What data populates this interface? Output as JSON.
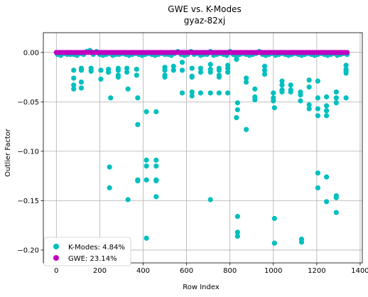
{
  "chart_data": {
    "type": "scatter",
    "title": "GWE vs. K-Modes",
    "subtitle": "gyaz-82xj",
    "xlabel": "Row Index",
    "ylabel": "Outlier Factor",
    "xlim": [
      -60,
      1410
    ],
    "ylim": [
      -0.213,
      0.02
    ],
    "xticks": [
      0,
      200,
      400,
      600,
      800,
      1000,
      1200,
      1400
    ],
    "yticks": [
      0.0,
      -0.05,
      -0.1,
      -0.15,
      -0.2
    ],
    "xtick_labels": [
      "0",
      "200",
      "400",
      "600",
      "800",
      "1000",
      "1200",
      "1400"
    ],
    "ytick_labels": [
      "0.00",
      "−0.05",
      "−0.10",
      "−0.15",
      "−0.20"
    ],
    "grid": true,
    "legend_position": "lower-left",
    "series": [
      {
        "name": "K-Modes: 4.84%",
        "color": "#00bfbf",
        "points": [
          [
            5,
            -0.002
          ],
          [
            20,
            -0.003
          ],
          [
            35,
            -0.001
          ],
          [
            50,
            -0.002
          ],
          [
            65,
            -0.002
          ],
          [
            80,
            -0.002
          ],
          [
            95,
            -0.003
          ],
          [
            110,
            -0.001
          ],
          [
            125,
            -0.002
          ],
          [
            140,
            0.001
          ],
          [
            155,
            0.002
          ],
          [
            170,
            -0.002
          ],
          [
            185,
            0.001
          ],
          [
            200,
            -0.002
          ],
          [
            215,
            -0.003
          ],
          [
            230,
            -0.002
          ],
          [
            245,
            -0.001
          ],
          [
            260,
            -0.003
          ],
          [
            275,
            -0.002
          ],
          [
            290,
            -0.002
          ],
          [
            305,
            -0.001
          ],
          [
            320,
            -0.002
          ],
          [
            335,
            -0.003
          ],
          [
            350,
            -0.002
          ],
          [
            365,
            -0.001
          ],
          [
            380,
            -0.002
          ],
          [
            395,
            -0.003
          ],
          [
            410,
            -0.002
          ],
          [
            425,
            -0.001
          ],
          [
            440,
            -0.002
          ],
          [
            455,
            -0.003
          ],
          [
            470,
            -0.002
          ],
          [
            485,
            -0.001
          ],
          [
            500,
            -0.002
          ],
          [
            515,
            -0.002
          ],
          [
            530,
            -0.003
          ],
          [
            545,
            -0.001
          ],
          [
            560,
            0.001
          ],
          [
            575,
            -0.002
          ],
          [
            590,
            -0.003
          ],
          [
            605,
            -0.002
          ],
          [
            620,
            0.001
          ],
          [
            635,
            -0.002
          ],
          [
            650,
            -0.001
          ],
          [
            665,
            -0.003
          ],
          [
            680,
            -0.002
          ],
          [
            695,
            -0.002
          ],
          [
            710,
            0.001
          ],
          [
            725,
            -0.003
          ],
          [
            740,
            -0.002
          ],
          [
            755,
            -0.001
          ],
          [
            770,
            -0.002
          ],
          [
            785,
            -0.003
          ],
          [
            800,
            0.001
          ],
          [
            815,
            -0.002
          ],
          [
            830,
            -0.003
          ],
          [
            845,
            -0.002
          ],
          [
            860,
            -0.001
          ],
          [
            875,
            -0.002
          ],
          [
            890,
            -0.003
          ],
          [
            905,
            -0.002
          ],
          [
            920,
            -0.001
          ],
          [
            935,
            0.001
          ],
          [
            950,
            -0.002
          ],
          [
            965,
            -0.003
          ],
          [
            980,
            -0.002
          ],
          [
            995,
            -0.001
          ],
          [
            1010,
            -0.003
          ],
          [
            1025,
            -0.002
          ],
          [
            1040,
            -0.001
          ],
          [
            1055,
            -0.002
          ],
          [
            1070,
            -0.003
          ],
          [
            1085,
            -0.002
          ],
          [
            1100,
            -0.001
          ],
          [
            1115,
            -0.002
          ],
          [
            1130,
            -0.003
          ],
          [
            1145,
            -0.002
          ],
          [
            1160,
            -0.001
          ],
          [
            1175,
            -0.002
          ],
          [
            1190,
            -0.003
          ],
          [
            1205,
            -0.002
          ],
          [
            1220,
            -0.001
          ],
          [
            1235,
            -0.002
          ],
          [
            1250,
            -0.003
          ],
          [
            1265,
            -0.002
          ],
          [
            1280,
            -0.001
          ],
          [
            1295,
            -0.003
          ],
          [
            1310,
            -0.002
          ],
          [
            1325,
            -0.001
          ],
          [
            1340,
            -0.002
          ],
          [
            80,
            -0.018
          ],
          [
            80,
            -0.026
          ],
          [
            80,
            -0.033
          ],
          [
            80,
            -0.037
          ],
          [
            115,
            -0.016
          ],
          [
            115,
            -0.018
          ],
          [
            115,
            -0.03
          ],
          [
            115,
            -0.036
          ],
          [
            160,
            -0.016
          ],
          [
            160,
            -0.019
          ],
          [
            205,
            -0.018
          ],
          [
            205,
            -0.027
          ],
          [
            240,
            -0.017
          ],
          [
            240,
            -0.02
          ],
          [
            250,
            -0.046
          ],
          [
            245,
            -0.116
          ],
          [
            245,
            -0.137
          ],
          [
            285,
            -0.016
          ],
          [
            285,
            -0.018
          ],
          [
            285,
            -0.023
          ],
          [
            285,
            -0.025
          ],
          [
            325,
            -0.016
          ],
          [
            325,
            -0.02
          ],
          [
            330,
            -0.037
          ],
          [
            330,
            -0.149
          ],
          [
            370,
            -0.017
          ],
          [
            370,
            -0.023
          ],
          [
            375,
            -0.046
          ],
          [
            375,
            -0.073
          ],
          [
            375,
            -0.129
          ],
          [
            375,
            -0.13
          ],
          [
            415,
            -0.06
          ],
          [
            415,
            -0.109
          ],
          [
            415,
            -0.115
          ],
          [
            415,
            -0.129
          ],
          [
            415,
            -0.188
          ],
          [
            460,
            -0.06
          ],
          [
            460,
            -0.109
          ],
          [
            460,
            -0.115
          ],
          [
            460,
            -0.129
          ],
          [
            460,
            -0.13
          ],
          [
            460,
            -0.146
          ],
          [
            500,
            -0.015
          ],
          [
            500,
            -0.018
          ],
          [
            500,
            -0.023
          ],
          [
            500,
            -0.025
          ],
          [
            540,
            -0.014
          ],
          [
            540,
            -0.018
          ],
          [
            580,
            -0.01
          ],
          [
            580,
            -0.018
          ],
          [
            580,
            -0.041
          ],
          [
            625,
            -0.016
          ],
          [
            625,
            -0.024
          ],
          [
            625,
            -0.025
          ],
          [
            625,
            -0.04
          ],
          [
            625,
            -0.044
          ],
          [
            665,
            -0.016
          ],
          [
            665,
            -0.02
          ],
          [
            665,
            -0.041
          ],
          [
            710,
            -0.012
          ],
          [
            710,
            -0.017
          ],
          [
            710,
            -0.02
          ],
          [
            710,
            -0.041
          ],
          [
            710,
            -0.149
          ],
          [
            750,
            -0.016
          ],
          [
            750,
            -0.018
          ],
          [
            750,
            -0.023
          ],
          [
            750,
            -0.025
          ],
          [
            750,
            -0.041
          ],
          [
            790,
            -0.013
          ],
          [
            790,
            -0.016
          ],
          [
            790,
            -0.02
          ],
          [
            790,
            -0.041
          ],
          [
            830,
            -0.004
          ],
          [
            830,
            -0.007
          ],
          [
            830,
            -0.066
          ],
          [
            835,
            -0.051
          ],
          [
            835,
            -0.058
          ],
          [
            835,
            -0.166
          ],
          [
            835,
            -0.182
          ],
          [
            835,
            -0.186
          ],
          [
            875,
            -0.026
          ],
          [
            875,
            -0.03
          ],
          [
            875,
            -0.078
          ],
          [
            915,
            -0.037
          ],
          [
            915,
            -0.045
          ],
          [
            915,
            -0.048
          ],
          [
            960,
            -0.014
          ],
          [
            960,
            -0.018
          ],
          [
            960,
            -0.022
          ],
          [
            1000,
            -0.041
          ],
          [
            1000,
            -0.046
          ],
          [
            1000,
            -0.049
          ],
          [
            1005,
            -0.056
          ],
          [
            1005,
            -0.168
          ],
          [
            1005,
            -0.193
          ],
          [
            1040,
            -0.029
          ],
          [
            1040,
            -0.033
          ],
          [
            1040,
            -0.038
          ],
          [
            1040,
            -0.04
          ],
          [
            1080,
            -0.033
          ],
          [
            1080,
            -0.038
          ],
          [
            1080,
            -0.04
          ],
          [
            1125,
            -0.04
          ],
          [
            1125,
            -0.043
          ],
          [
            1125,
            -0.049
          ],
          [
            1130,
            -0.189
          ],
          [
            1130,
            -0.192
          ],
          [
            1165,
            -0.028
          ],
          [
            1165,
            -0.035
          ],
          [
            1165,
            -0.053
          ],
          [
            1165,
            -0.057
          ],
          [
            1205,
            -0.029
          ],
          [
            1205,
            -0.046
          ],
          [
            1205,
            -0.057
          ],
          [
            1205,
            -0.064
          ],
          [
            1205,
            -0.122
          ],
          [
            1205,
            -0.137
          ],
          [
            1245,
            -0.045
          ],
          [
            1245,
            -0.054
          ],
          [
            1245,
            -0.059
          ],
          [
            1245,
            -0.064
          ],
          [
            1245,
            -0.126
          ],
          [
            1245,
            -0.151
          ],
          [
            1290,
            -0.04
          ],
          [
            1290,
            -0.046
          ],
          [
            1290,
            -0.051
          ],
          [
            1290,
            -0.145
          ],
          [
            1290,
            -0.147
          ],
          [
            1290,
            -0.162
          ],
          [
            1335,
            -0.013
          ],
          [
            1335,
            -0.017
          ],
          [
            1335,
            -0.019
          ],
          [
            1335,
            -0.021
          ],
          [
            1335,
            -0.046
          ]
        ]
      },
      {
        "name": "GWE: 23.14%",
        "color": "#bf00bf",
        "x_range": [
          0,
          1345
        ],
        "step": 10,
        "value": 0.0
      }
    ]
  }
}
